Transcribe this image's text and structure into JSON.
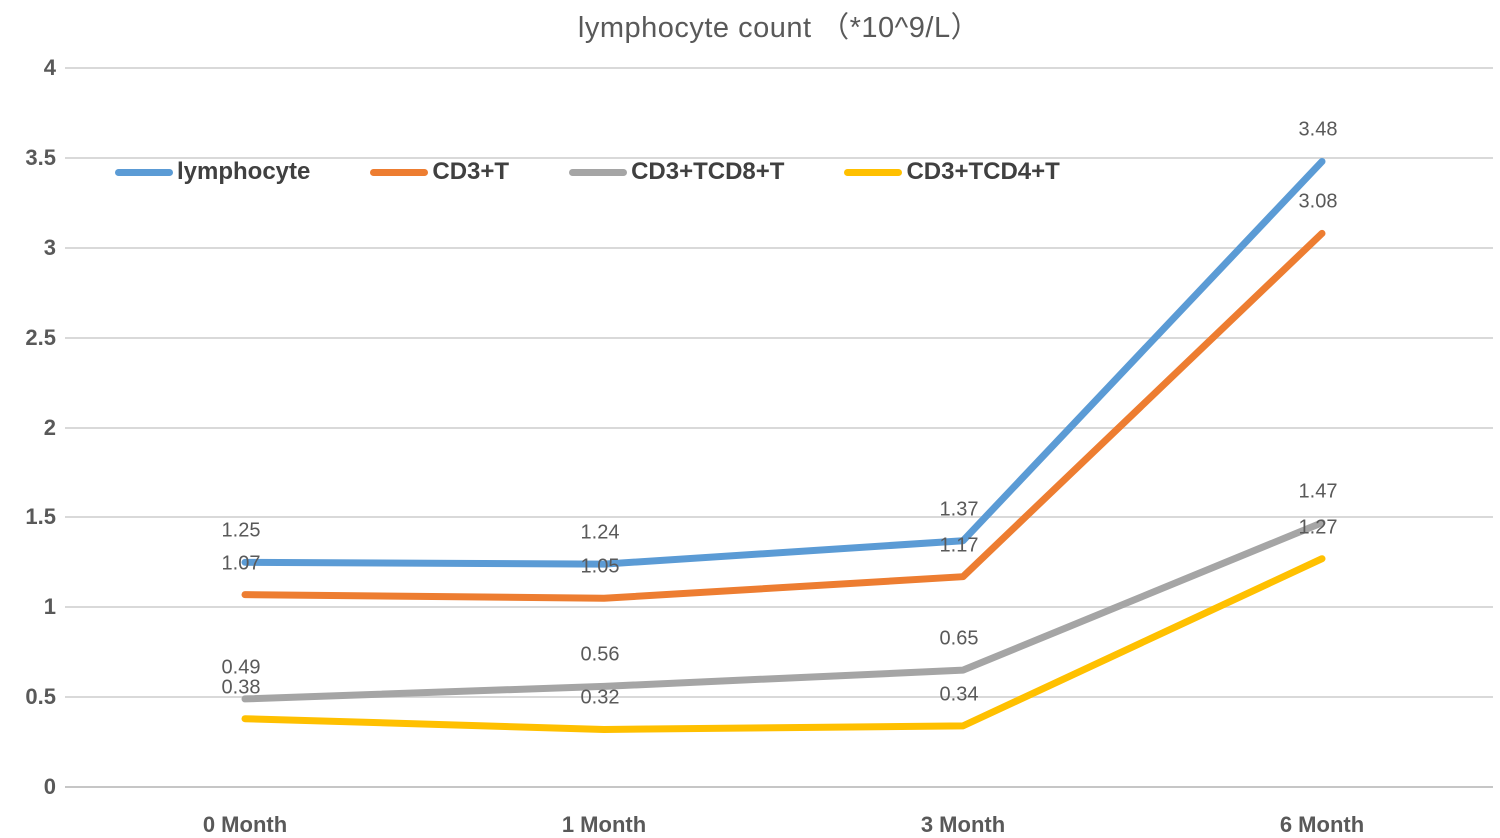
{
  "title": "lymphocyte count （*10^9/L）",
  "chart_data": {
    "type": "line",
    "title": "lymphocyte count （*10^9/L）",
    "categories": [
      "0 Month",
      "1 Month",
      "3 Month",
      "6 Month"
    ],
    "series": [
      {
        "name": "lymphocyte",
        "color": "#5B9BD5",
        "values": [
          1.25,
          1.24,
          1.37,
          3.48
        ]
      },
      {
        "name": "CD3+T",
        "color": "#ED7D31",
        "values": [
          1.07,
          1.05,
          1.17,
          3.08
        ]
      },
      {
        "name": "CD3+TCD8+T",
        "color": "#A5A5A5",
        "values": [
          0.49,
          0.56,
          0.65,
          1.47
        ]
      },
      {
        "name": "CD3+TCD4+T",
        "color": "#FFC000",
        "values": [
          0.38,
          0.32,
          0.34,
          1.27
        ]
      }
    ],
    "xlabel": "",
    "ylabel": "",
    "ylim": [
      0,
      4
    ],
    "y_ticks": [
      {
        "v": 4,
        "label": "4"
      },
      {
        "v": 3.5,
        "label": "3.5"
      },
      {
        "v": 3,
        "label": "3"
      },
      {
        "v": 2.5,
        "label": "2.5"
      },
      {
        "v": 2,
        "label": "2"
      },
      {
        "v": 1.5,
        "label": "1.5"
      },
      {
        "v": 1,
        "label": "1"
      },
      {
        "v": 0.5,
        "label": "0.5"
      },
      {
        "v": 0,
        "label": "0"
      }
    ],
    "grid": true,
    "data_labels": true,
    "legend_position": "top-left-row",
    "colors": {
      "grid": "#D9D9D9",
      "axis": "#C6C6C6",
      "tick_text": "#595959",
      "data_label_text": "#595959",
      "legend_text": "#404040",
      "title_text": "#595959"
    }
  }
}
